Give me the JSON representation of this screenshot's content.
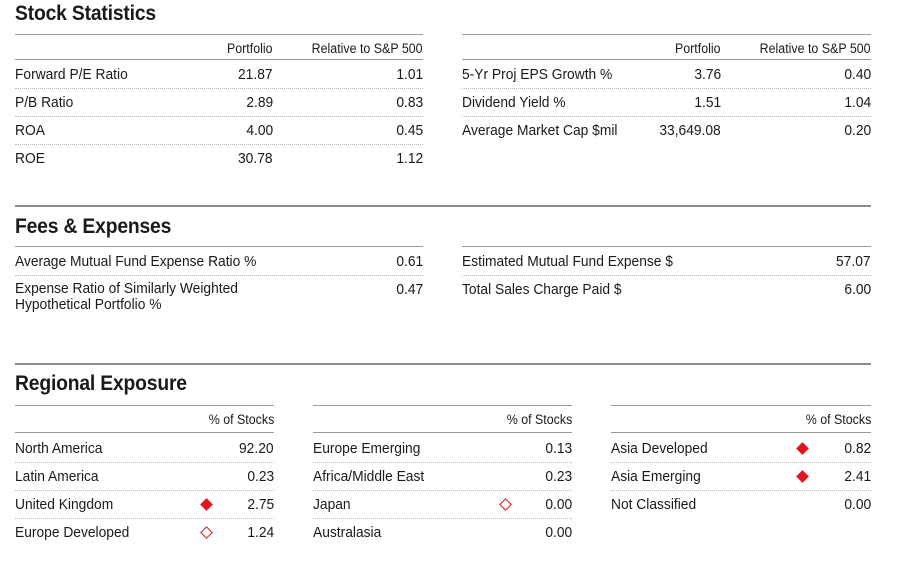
{
  "stock_statistics": {
    "title": "Stock Statistics",
    "headers": {
      "portfolio": "Portfolio",
      "relative": "Relative to S&P 500"
    },
    "left": [
      {
        "label": "Forward P/E Ratio",
        "portfolio": "21.87",
        "relative": "1.01"
      },
      {
        "label": "P/B Ratio",
        "portfolio": "2.89",
        "relative": "0.83"
      },
      {
        "label": "ROA",
        "portfolio": "4.00",
        "relative": "0.45"
      },
      {
        "label": "ROE",
        "portfolio": "30.78",
        "relative": "1.12"
      }
    ],
    "right": [
      {
        "label": "5-Yr Proj EPS Growth %",
        "portfolio": "3.76",
        "relative": "0.40"
      },
      {
        "label": "Dividend Yield %",
        "portfolio": "1.51",
        "relative": "1.04"
      },
      {
        "label": "Average Market Cap $mil",
        "portfolio": "33,649.08",
        "relative": "0.20"
      }
    ]
  },
  "fees": {
    "title": "Fees & Expenses",
    "left": [
      {
        "label": "Average Mutual Fund Expense Ratio %",
        "value": "0.61"
      },
      {
        "label_line1": "Expense Ratio of Similarly Weighted",
        "label_line2": "Hypothetical Portfolio %",
        "value": "0.47"
      }
    ],
    "right": [
      {
        "label": "Estimated Mutual Fund Expense $",
        "value": "57.07"
      },
      {
        "label": "Total Sales Charge Paid $",
        "value": "6.00"
      }
    ]
  },
  "regional": {
    "title": "Regional Exposure",
    "header": "% of Stocks",
    "indicator_color": "#e2141d",
    "col1": [
      {
        "label": "North America",
        "value": "92.20",
        "indicator": "none"
      },
      {
        "label": "Latin America",
        "value": "0.23",
        "indicator": "none"
      },
      {
        "label": "United Kingdom",
        "value": "2.75",
        "indicator": "filled-diamond"
      },
      {
        "label": "Europe Developed",
        "value": "1.24",
        "indicator": "hollow-diamond"
      }
    ],
    "col2": [
      {
        "label": "Europe Emerging",
        "value": "0.13",
        "indicator": "none"
      },
      {
        "label": "Africa/Middle East",
        "value": "0.23",
        "indicator": "none"
      },
      {
        "label": "Japan",
        "value": "0.00",
        "indicator": "hollow-diamond"
      },
      {
        "label": "Australasia",
        "value": "0.00",
        "indicator": "none"
      }
    ],
    "col3": [
      {
        "label": "Asia Developed",
        "value": "0.82",
        "indicator": "filled-diamond"
      },
      {
        "label": "Asia Emerging",
        "value": "2.41",
        "indicator": "filled-diamond"
      },
      {
        "label": "Not Classified",
        "value": "0.00",
        "indicator": "none"
      }
    ]
  }
}
